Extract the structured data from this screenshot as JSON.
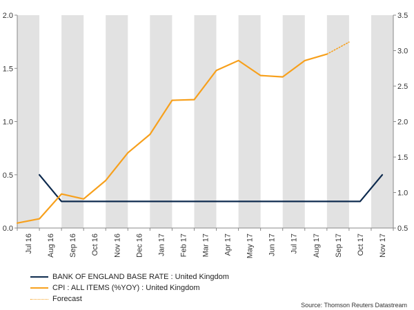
{
  "chart_data": {
    "type": "line",
    "categories": [
      "Jul 16",
      "Aug 16",
      "Sep 16",
      "Oct 16",
      "Nov 16",
      "Dec 16",
      "Jan 17",
      "Feb 17",
      "Mar 17",
      "Apr 17",
      "May 17",
      "Jun 17",
      "Jul 17",
      "Aug 17",
      "Sep 17",
      "Oct 17",
      "Nov 17"
    ],
    "left_axis": {
      "min": 0.0,
      "max": 2.0,
      "ticks": [
        "0.0",
        "0.5",
        "1.0",
        "1.5",
        "2.0"
      ],
      "series": "BANK OF ENGLAND BASE RATE : United Kingdom"
    },
    "right_axis": {
      "min": 0.5,
      "max": 3.5,
      "ticks": [
        "0.5",
        "1.0",
        "1.5",
        "2.0",
        "2.5",
        "3.0",
        "3.5"
      ],
      "series": "CPI : ALL ITEMS (%YOY) : United Kingdom"
    },
    "series": [
      {
        "name": "BANK OF ENGLAND BASE RATE : United Kingdom",
        "axis": "left",
        "color": "#0d2a4e",
        "points": [
          {
            "x": 0.5,
            "y": 0.5
          },
          {
            "x": 1.5,
            "y": 0.25
          },
          {
            "x": 15.0,
            "y": 0.25
          },
          {
            "x": 16.0,
            "y": 0.5
          }
        ]
      },
      {
        "name": "CPI : ALL ITEMS (%YOY) : United Kingdom",
        "axis": "right",
        "color": "#f7a01c",
        "points": [
          {
            "x": -0.5,
            "y": 0.57
          },
          {
            "x": 0.5,
            "y": 0.63
          },
          {
            "x": 1.5,
            "y": 0.98
          },
          {
            "x": 2.5,
            "y": 0.91
          },
          {
            "x": 3.5,
            "y": 1.17
          },
          {
            "x": 4.5,
            "y": 1.56
          },
          {
            "x": 5.5,
            "y": 1.82
          },
          {
            "x": 6.5,
            "y": 2.3
          },
          {
            "x": 7.5,
            "y": 2.31
          },
          {
            "x": 8.5,
            "y": 2.72
          },
          {
            "x": 9.5,
            "y": 2.86
          },
          {
            "x": 10.5,
            "y": 2.65
          },
          {
            "x": 11.5,
            "y": 2.63
          },
          {
            "x": 12.5,
            "y": 2.86
          },
          {
            "x": 13.5,
            "y": 2.95
          }
        ]
      },
      {
        "name": "Forecast",
        "axis": "right",
        "color": "#f7a01c",
        "dashed": true,
        "points": [
          {
            "x": 13.5,
            "y": 2.95
          },
          {
            "x": 14.5,
            "y": 3.12
          }
        ]
      }
    ],
    "legend": [
      {
        "label": "BANK OF ENGLAND BASE RATE : United Kingdom",
        "color": "#0d2a4e",
        "style": "solid"
      },
      {
        "label": "CPI : ALL ITEMS (%YOY) : United Kingdom",
        "color": "#f7a01c",
        "style": "solid"
      },
      {
        "label": "Forecast",
        "color": "#f7a01c",
        "style": "dotted"
      }
    ],
    "legend_position": "bottom-left",
    "source": "Source: Thomson Reuters Datastream",
    "band_color": "#e2e2e2"
  }
}
